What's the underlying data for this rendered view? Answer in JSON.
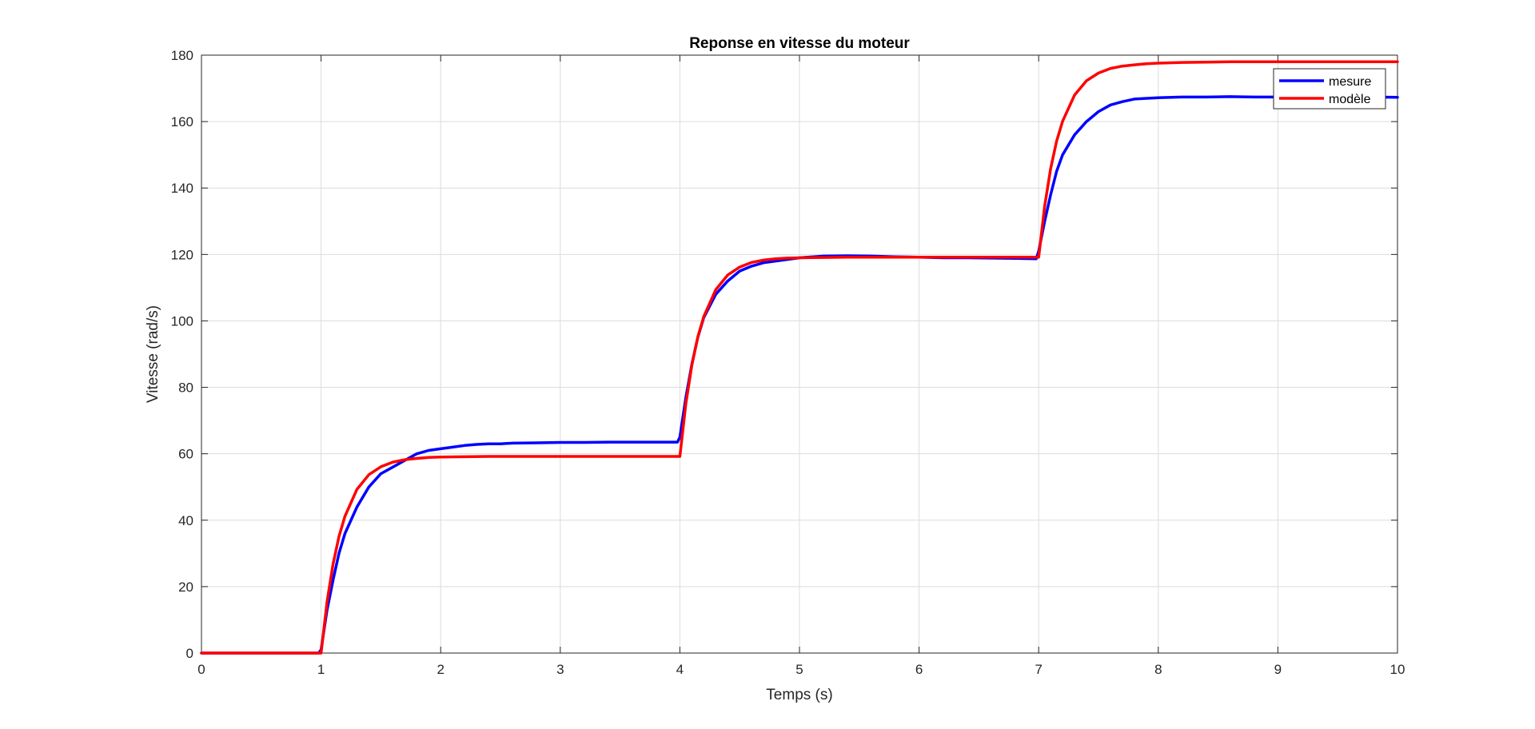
{
  "chart_data": {
    "type": "line",
    "title": "Reponse en vitesse du moteur",
    "xlabel": "Temps (s)",
    "ylabel": "Vitesse (rad/s)",
    "xlim": [
      0,
      10
    ],
    "ylim": [
      0,
      180
    ],
    "xticks": [
      0,
      1,
      2,
      3,
      4,
      5,
      6,
      7,
      8,
      9,
      10
    ],
    "yticks": [
      0,
      20,
      40,
      60,
      80,
      100,
      120,
      140,
      160,
      180
    ],
    "grid": true,
    "legend_position": "top-right",
    "series": [
      {
        "name": "mesure",
        "color": "#0000ff",
        "x": [
          0,
          0.98,
          1.0,
          1.05,
          1.1,
          1.15,
          1.2,
          1.3,
          1.4,
          1.5,
          1.6,
          1.7,
          1.8,
          1.9,
          2.0,
          2.1,
          2.2,
          2.3,
          2.4,
          2.5,
          2.6,
          2.8,
          3.0,
          3.2,
          3.4,
          3.6,
          3.8,
          3.98,
          4.0,
          4.05,
          4.1,
          4.15,
          4.2,
          4.3,
          4.4,
          4.5,
          4.6,
          4.7,
          4.8,
          5.0,
          5.2,
          5.4,
          5.6,
          5.8,
          6.0,
          6.2,
          6.4,
          6.6,
          6.8,
          6.98,
          7.0,
          7.05,
          7.1,
          7.15,
          7.2,
          7.3,
          7.4,
          7.5,
          7.6,
          7.7,
          7.8,
          8.0,
          8.2,
          8.4,
          8.6,
          8.8,
          9.0,
          9.2,
          9.4,
          9.6,
          9.8,
          10.0
        ],
        "y": [
          0,
          0,
          1,
          13,
          22,
          30,
          36,
          44,
          50,
          54,
          56,
          58,
          60,
          61,
          61.5,
          62,
          62.5,
          62.8,
          63,
          63,
          63.2,
          63.3,
          63.4,
          63.4,
          63.5,
          63.5,
          63.5,
          63.5,
          65,
          77,
          87,
          95,
          101,
          108,
          112,
          115,
          116.5,
          117.5,
          118,
          119,
          119.5,
          119.6,
          119.5,
          119.3,
          119.2,
          119,
          119,
          118.9,
          118.8,
          118.7,
          121,
          130,
          138,
          145,
          150,
          156,
          160,
          163,
          165,
          166,
          166.8,
          167.2,
          167.4,
          167.4,
          167.5,
          167.4,
          167.4,
          167.3,
          167.3,
          167.3,
          167.4,
          167.3
        ]
      },
      {
        "name": "modèle",
        "color": "#ff0000",
        "x": [
          0,
          0.99,
          1.0,
          1.05,
          1.1,
          1.15,
          1.2,
          1.3,
          1.4,
          1.5,
          1.6,
          1.7,
          1.8,
          1.9,
          2.0,
          2.2,
          2.4,
          2.6,
          3.0,
          3.5,
          3.99,
          4.0,
          4.05,
          4.1,
          4.15,
          4.2,
          4.3,
          4.4,
          4.5,
          4.6,
          4.7,
          4.8,
          4.9,
          5.0,
          5.2,
          5.4,
          5.6,
          6.0,
          6.5,
          6.99,
          7.0,
          7.05,
          7.1,
          7.15,
          7.2,
          7.3,
          7.4,
          7.5,
          7.6,
          7.7,
          7.8,
          7.9,
          8.0,
          8.2,
          8.4,
          8.6,
          9.0,
          9.5,
          10.0
        ],
        "y": [
          0,
          0,
          0,
          15.5,
          26.8,
          35.1,
          41.2,
          49.3,
          53.7,
          56.1,
          57.5,
          58.2,
          58.6,
          58.9,
          59.0,
          59.1,
          59.2,
          59.2,
          59.2,
          59.2,
          59.2,
          59.2,
          75.1,
          86.7,
          95.1,
          101.3,
          109.4,
          113.8,
          116.2,
          117.6,
          118.3,
          118.7,
          118.9,
          119.0,
          119.1,
          119.2,
          119.2,
          119.2,
          119.2,
          119.2,
          119.2,
          134.6,
          145.9,
          154.1,
          160.1,
          168.0,
          172.3,
          174.6,
          176.0,
          176.7,
          177.1,
          177.4,
          177.6,
          177.8,
          177.9,
          178.0,
          178.0,
          178.0,
          178.0
        ]
      }
    ]
  }
}
